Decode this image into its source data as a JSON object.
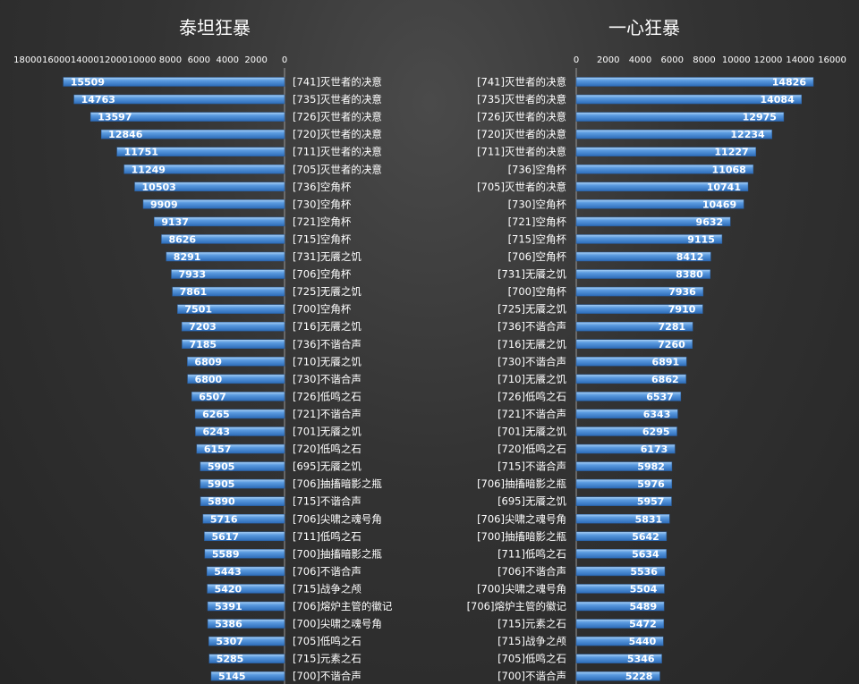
{
  "chart_data": [
    {
      "type": "bar",
      "orientation": "horizontal",
      "direction": "right-to-left",
      "title": "泰坦狂暴",
      "xlim": [
        0,
        18000
      ],
      "ticks": [
        "18000",
        "16000",
        "14000",
        "12000",
        "10000",
        "8000",
        "6000",
        "4000",
        "2000",
        "0"
      ],
      "tick_values": [
        18000,
        16000,
        14000,
        12000,
        10000,
        8000,
        6000,
        4000,
        2000,
        0
      ],
      "categories": [
        "[741]灭世者的决意",
        "[735]灭世者的决意",
        "[726]灭世者的决意",
        "[720]灭世者的决意",
        "[711]灭世者的决意",
        "[705]灭世者的决意",
        "[736]空角杯",
        "[730]空角杯",
        "[721]空角杯",
        "[715]空角杯",
        "[731]无餍之饥",
        "[706]空角杯",
        "[725]无餍之饥",
        "[700]空角杯",
        "[716]无餍之饥",
        "[736]不谐合声",
        "[710]无餍之饥",
        "[730]不谐合声",
        "[726]低鸣之石",
        "[721]不谐合声",
        "[701]无餍之饥",
        "[720]低鸣之石",
        "[695]无餍之饥",
        "[706]抽搐暗影之瓶",
        "[715]不谐合声",
        "[706]尖啸之魂号角",
        "[711]低鸣之石",
        "[700]抽搐暗影之瓶",
        "[706]不谐合声",
        "[715]战争之颅",
        "[706]熔炉主管的徽记",
        "[700]尖啸之魂号角",
        "[705]低鸣之石",
        "[715]元素之石",
        "[700]不谐合声"
      ],
      "values": [
        15509,
        14763,
        13597,
        12846,
        11751,
        11249,
        10503,
        9909,
        9137,
        8626,
        8291,
        7933,
        7861,
        7501,
        7203,
        7185,
        6809,
        6800,
        6507,
        6265,
        6243,
        6157,
        5905,
        5905,
        5890,
        5716,
        5617,
        5589,
        5443,
        5420,
        5391,
        5386,
        5307,
        5285,
        5145
      ],
      "color": "#4f8fd6",
      "grid": false,
      "legend": "none"
    },
    {
      "type": "bar",
      "orientation": "horizontal",
      "direction": "left-to-right",
      "title": "一心狂暴",
      "xlim": [
        0,
        16000
      ],
      "ticks": [
        "0",
        "2000",
        "4000",
        "6000",
        "8000",
        "10000",
        "12000",
        "14000",
        "16000"
      ],
      "tick_values": [
        0,
        2000,
        4000,
        6000,
        8000,
        10000,
        12000,
        14000,
        16000
      ],
      "categories": [
        "[741]灭世者的决意",
        "[735]灭世者的决意",
        "[726]灭世者的决意",
        "[720]灭世者的决意",
        "[711]灭世者的决意",
        "[736]空角杯",
        "[705]灭世者的决意",
        "[730]空角杯",
        "[721]空角杯",
        "[715]空角杯",
        "[706]空角杯",
        "[731]无餍之饥",
        "[700]空角杯",
        "[725]无餍之饥",
        "[736]不谐合声",
        "[716]无餍之饥",
        "[730]不谐合声",
        "[710]无餍之饥",
        "[726]低鸣之石",
        "[721]不谐合声",
        "[701]无餍之饥",
        "[720]低鸣之石",
        "[715]不谐合声",
        "[706]抽搐暗影之瓶",
        "[695]无餍之饥",
        "[706]尖啸之魂号角",
        "[700]抽搐暗影之瓶",
        "[711]低鸣之石",
        "[706]不谐合声",
        "[700]尖啸之魂号角",
        "[706]熔炉主管的徽记",
        "[715]元素之石",
        "[715]战争之颅",
        "[705]低鸣之石",
        "[700]不谐合声"
      ],
      "values": [
        14826,
        14084,
        12975,
        12234,
        11227,
        11068,
        10741,
        10469,
        9632,
        9115,
        8412,
        8380,
        7936,
        7910,
        7281,
        7260,
        6891,
        6862,
        6537,
        6343,
        6295,
        6173,
        5982,
        5976,
        5957,
        5831,
        5642,
        5634,
        5536,
        5504,
        5489,
        5472,
        5440,
        5346,
        5228
      ],
      "color": "#4f8fd6",
      "grid": false,
      "legend": "none"
    }
  ]
}
